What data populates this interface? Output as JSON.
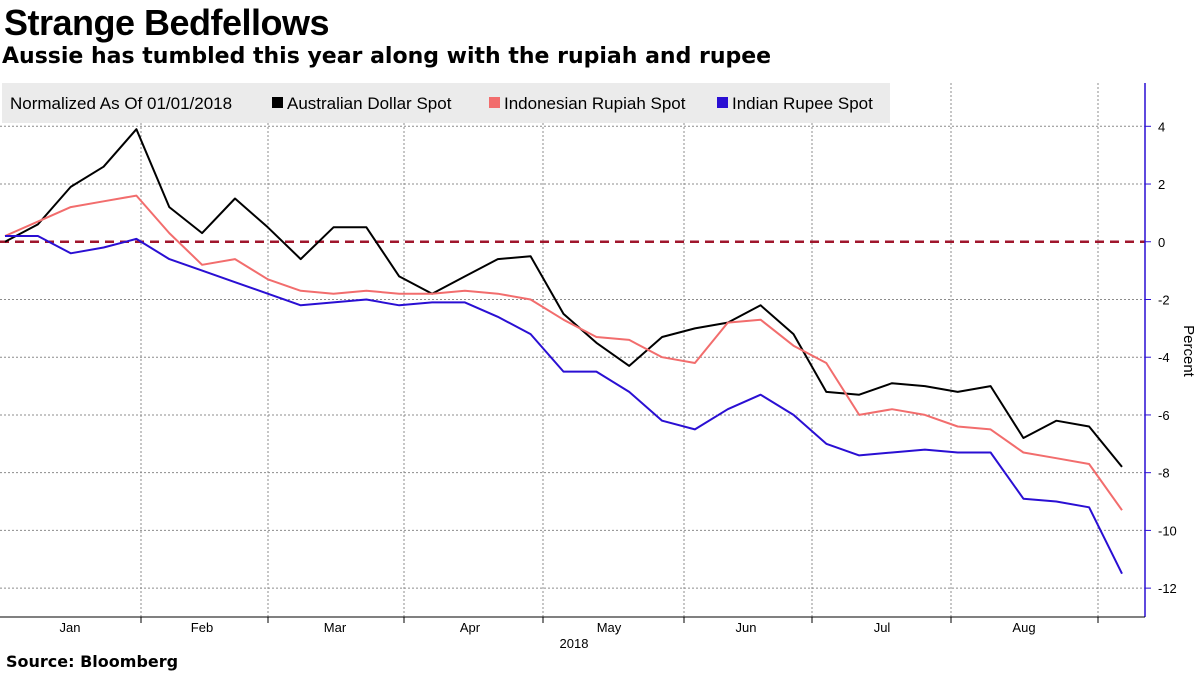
{
  "header": {
    "title": "Strange Bedfellows",
    "subtitle": "Aussie has tumbled this year along with the rupiah and rupee"
  },
  "footer": {
    "source": "Source: Bloomberg"
  },
  "colors": {
    "aud": "#000000",
    "idr": "#f26d6d",
    "inr": "#2a0fd3",
    "zero_line": "#a0162c",
    "axis": "#2a0fd3",
    "legend_bg": "#ebebeb"
  },
  "chart_data": {
    "type": "line",
    "title": "Strange Bedfellows",
    "subtitle": "Aussie has tumbled this year along with the rupiah and rupee",
    "legend_title": "Normalized As Of 01/01/2018",
    "ylabel": "Percent",
    "x_axis_year": "2018",
    "month_labels": [
      "Jan",
      "Feb",
      "Mar",
      "Apr",
      "May",
      "Jun",
      "Jul",
      "Aug"
    ],
    "ylim": [
      -13,
      5.5
    ],
    "yticks": [
      4,
      2,
      0,
      -2,
      -4,
      -6,
      -8,
      -10,
      -12
    ],
    "legend_position": "top-left",
    "grid": true,
    "reference_line": 0,
    "x_unit": "weeks since 2018-01-01",
    "series": [
      {
        "name": "Australian Dollar Spot",
        "color": "#000000",
        "x": [
          0,
          1,
          2,
          3,
          4,
          5,
          6,
          7,
          8,
          9,
          10,
          11,
          12,
          13,
          14,
          15,
          16,
          17,
          18,
          19,
          20,
          21,
          22,
          23,
          24,
          25,
          26,
          27,
          28,
          29,
          30,
          31,
          32,
          33,
          34
        ],
        "values": [
          0.0,
          0.6,
          1.9,
          2.6,
          3.9,
          1.2,
          0.3,
          1.5,
          0.5,
          -0.6,
          0.5,
          0.5,
          -1.2,
          -1.8,
          -1.2,
          -0.6,
          -0.5,
          -2.5,
          -3.5,
          -4.3,
          -3.3,
          -3.0,
          -2.8,
          -2.2,
          -3.2,
          -5.2,
          -5.3,
          -4.9,
          -5.0,
          -5.2,
          -5.0,
          -6.8,
          -6.2,
          -6.4,
          -7.8
        ]
      },
      {
        "name": "Indonesian Rupiah Spot",
        "color": "#f26d6d",
        "x": [
          0,
          1,
          2,
          3,
          4,
          5,
          6,
          7,
          8,
          9,
          10,
          11,
          12,
          13,
          14,
          15,
          16,
          17,
          18,
          19,
          20,
          21,
          22,
          23,
          24,
          25,
          26,
          27,
          28,
          29,
          30,
          31,
          32,
          33,
          34
        ],
        "values": [
          0.2,
          0.7,
          1.2,
          1.4,
          1.6,
          0.3,
          -0.8,
          -0.6,
          -1.3,
          -1.7,
          -1.8,
          -1.7,
          -1.8,
          -1.8,
          -1.7,
          -1.8,
          -2.0,
          -2.7,
          -3.3,
          -3.4,
          -4.0,
          -4.2,
          -2.8,
          -2.7,
          -3.6,
          -4.2,
          -6.0,
          -5.8,
          -6.0,
          -6.4,
          -6.5,
          -7.3,
          -7.5,
          -7.7,
          -9.3
        ]
      },
      {
        "name": "Indian Rupee Spot",
        "color": "#2a0fd3",
        "x": [
          0,
          1,
          2,
          3,
          4,
          5,
          6,
          7,
          8,
          9,
          10,
          11,
          12,
          13,
          14,
          15,
          16,
          17,
          18,
          19,
          20,
          21,
          22,
          23,
          24,
          25,
          26,
          27,
          28,
          29,
          30,
          31,
          32,
          33,
          34
        ],
        "values": [
          0.2,
          0.2,
          -0.4,
          -0.2,
          0.1,
          -0.6,
          -1.0,
          -1.4,
          -1.8,
          -2.2,
          -2.1,
          -2.0,
          -2.2,
          -2.1,
          -2.1,
          -2.6,
          -3.2,
          -4.5,
          -4.5,
          -5.2,
          -6.2,
          -6.5,
          -5.8,
          -5.3,
          -6.0,
          -7.0,
          -7.4,
          -7.3,
          -7.2,
          -7.3,
          -7.3,
          -8.9,
          -9.0,
          -9.2,
          -11.5
        ]
      }
    ]
  }
}
